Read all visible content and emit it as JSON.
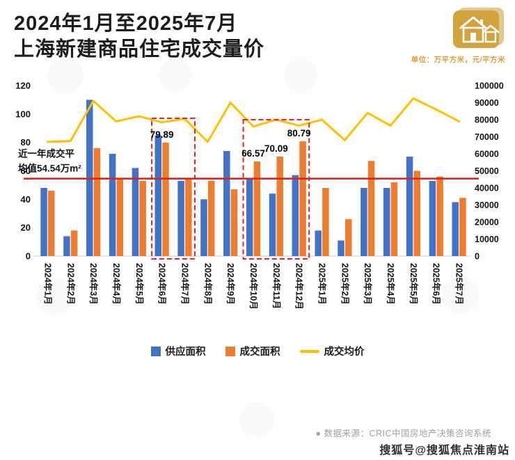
{
  "header": {
    "title_line1": "2024年1月至2025年7月",
    "title_line2": "上海新建商品住宅成交量价",
    "unit_label": "单位：万平方米，元/平方米"
  },
  "colors": {
    "supply_bar": "#4472C4",
    "deal_bar": "#ED7D31",
    "price_line": "#FFC000",
    "avg_line": "#D42A1E",
    "highlight_box": "#E8251C",
    "title_text": "#1C1C1C",
    "unit_text": "#DF9C3F",
    "source_text": "#9AA0A5",
    "house_icon": "#D2A33C"
  },
  "chart_data": {
    "type": "bar",
    "subtype": "grouped-bars-with-line",
    "title": "2024年1月至2025年7月 上海新建商品住宅成交量价",
    "xlabel": "",
    "ylabel_left": "万平方米",
    "ylabel_right": "元/平方米",
    "grid": false,
    "legend_position": "bottom-center",
    "categories": [
      "2024年1月",
      "2024年2月",
      "2024年3月",
      "2024年4月",
      "2024年5月",
      "2024年6月",
      "2024年7月",
      "2024年8月",
      "2024年9月",
      "2024年10月",
      "2024年11月",
      "2024年12月",
      "2025年1月",
      "2025年2月",
      "2025年3月",
      "2025年4月",
      "2025年5月",
      "2025年6月",
      "2025年7月"
    ],
    "series": [
      {
        "name": "供应面积",
        "type": "bar",
        "axis": "left",
        "color": "#4472C4",
        "values": [
          48,
          14,
          110,
          72,
          62,
          85,
          53,
          40,
          74,
          54,
          44,
          57,
          18,
          11,
          48,
          48,
          70,
          53,
          38
        ]
      },
      {
        "name": "成交面积",
        "type": "bar",
        "axis": "left",
        "color": "#ED7D31",
        "values": [
          46,
          18,
          76,
          55,
          53,
          79.89,
          54,
          53,
          47,
          66.57,
          70.09,
          80.79,
          48,
          26,
          67,
          52,
          60,
          56,
          41
        ]
      },
      {
        "name": "成交均价",
        "type": "line",
        "axis": "right",
        "color": "#FFC000",
        "values": [
          67000,
          67500,
          91000,
          79000,
          82000,
          78500,
          80500,
          67000,
          90000,
          76000,
          80000,
          76500,
          80000,
          68000,
          84000,
          76500,
          92500,
          86000,
          79000
        ]
      }
    ],
    "left_axis": {
      "min": 0,
      "max": 120,
      "ticks": [
        "120",
        "100",
        "80",
        "60",
        "40",
        "20",
        "0"
      ]
    },
    "right_axis": {
      "min": 0,
      "max": 100000,
      "ticks": [
        "100000",
        "90000",
        "80000",
        "70000",
        "60000",
        "50000",
        "40000",
        "30000",
        "20000",
        "10000",
        "0"
      ]
    },
    "annotations": {
      "avg_line_value": 54.54,
      "avg_label_line1": "近一年成交平",
      "avg_label_line2": "均值54.54万m²",
      "data_labels": [
        {
          "index": 5,
          "text": "79.89"
        },
        {
          "index": 9,
          "text": "66.57"
        },
        {
          "index": 10,
          "text": "70.09"
        },
        {
          "index": 11,
          "text": "80.79"
        }
      ],
      "highlight_boxes": [
        {
          "from": 5,
          "to": 6,
          "top_value": 97
        },
        {
          "from": 9,
          "to": 11,
          "top_value": 96
        }
      ]
    }
  },
  "footer": {
    "bullet": "●",
    "source": "数据来源：CRIC中国房地产决策咨询系统",
    "watermark": "搜狐号@搜狐焦点淮南站"
  }
}
